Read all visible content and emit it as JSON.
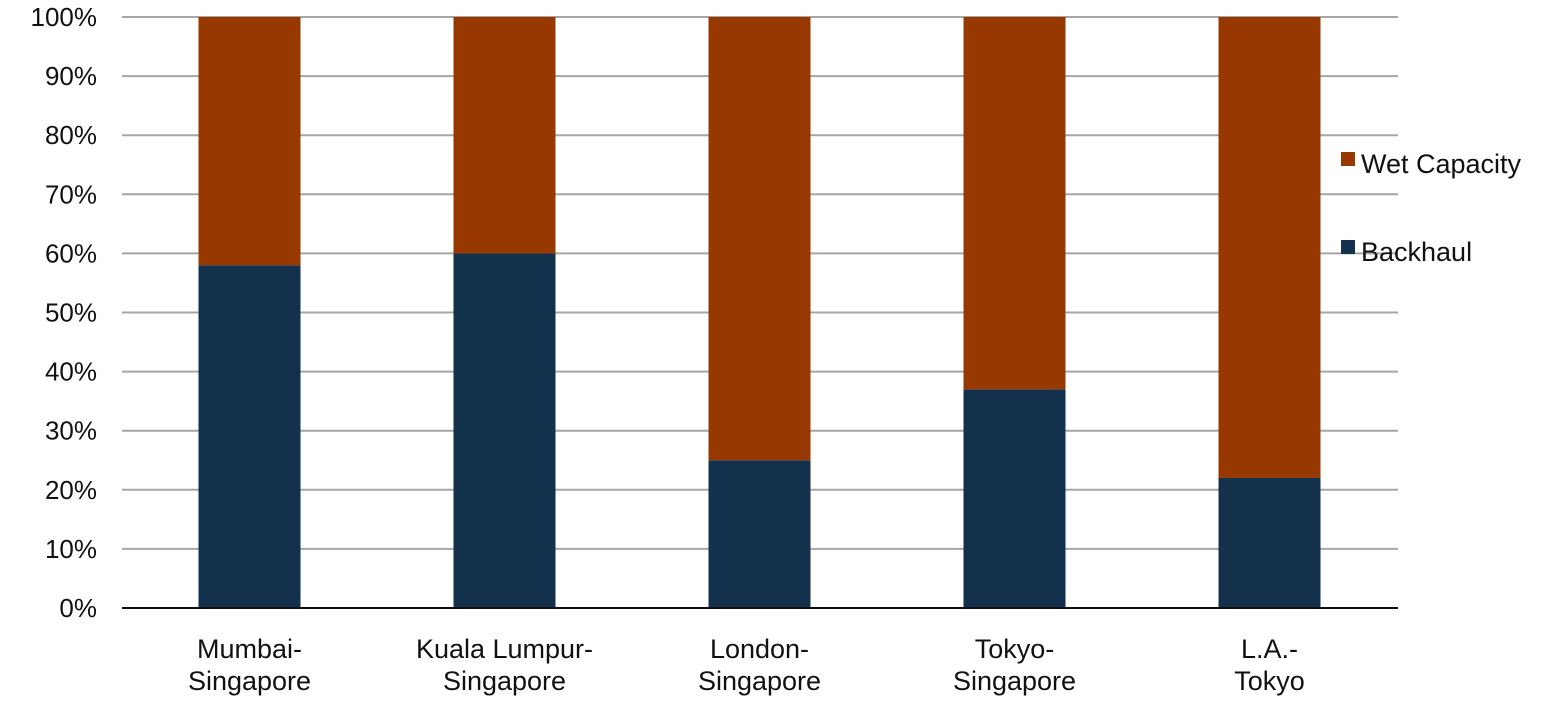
{
  "chart_data": {
    "type": "bar",
    "stacked": true,
    "categories": [
      [
        "Mumbai-",
        "Singapore"
      ],
      [
        "Kuala Lumpur-",
        "Singapore"
      ],
      [
        "London-",
        "Singapore"
      ],
      [
        "Tokyo-",
        "Singapore"
      ],
      [
        "L.A.-",
        "Tokyo"
      ]
    ],
    "series": [
      {
        "name": "Backhaul",
        "color": "#13304d",
        "values": [
          58,
          60,
          25,
          37,
          22
        ]
      },
      {
        "name": "Wet Capacity",
        "color": "#963800",
        "values": [
          42,
          40,
          75,
          63,
          78
        ]
      }
    ],
    "ylim": [
      0,
      100
    ],
    "y_ticks": [
      0,
      10,
      20,
      30,
      40,
      50,
      60,
      70,
      80,
      90,
      100
    ],
    "y_tick_suffix": "%",
    "grid": true,
    "grid_color": "#a6a6a6",
    "legend": {
      "placement": "right",
      "order": [
        "Wet Capacity",
        "Backhaul"
      ]
    },
    "title": "",
    "xlabel": "",
    "ylabel": ""
  }
}
